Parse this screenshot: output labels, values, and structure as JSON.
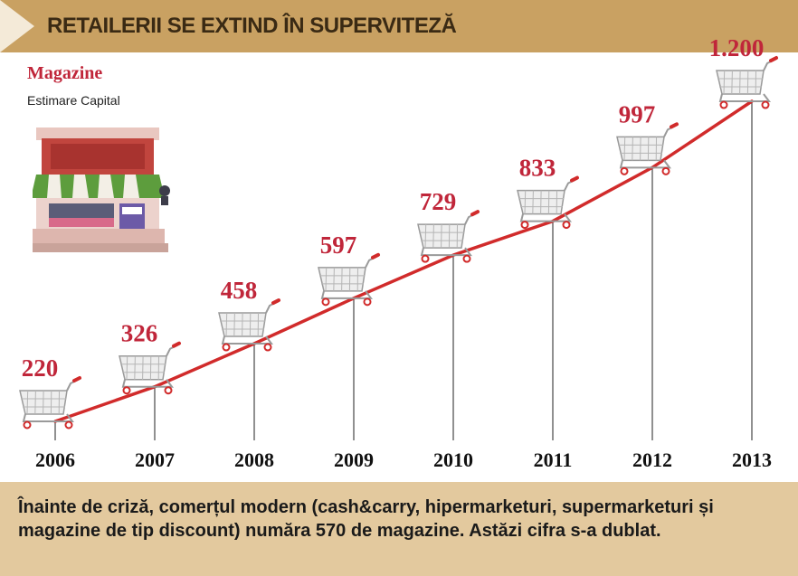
{
  "header": {
    "title": "RETAILERII SE EXTIND ÎN SUPERVITEZĂ"
  },
  "chart_data": {
    "type": "line",
    "title": "Magazine",
    "source": "Estimare Capital",
    "categories": [
      "2006",
      "2007",
      "2008",
      "2009",
      "2010",
      "2011",
      "2012",
      "2013"
    ],
    "values": [
      220,
      326,
      458,
      597,
      729,
      833,
      997,
      1200
    ],
    "value_labels": [
      "220",
      "326",
      "458",
      "597",
      "729",
      "833",
      "997",
      "1.200"
    ],
    "line_color": "#d12b2b",
    "label_color": "#c0263a",
    "grid": false
  },
  "footer": {
    "text": "Înainte de criză, comerțul modern (cash&carry, hipermarketuri, supermarketuri și magazine de tip discount) număra 570 de magazine. Astăzi cifra s-a dublat."
  },
  "colors": {
    "header_bg": "#c9a162",
    "footer_bg": "#e3c99e",
    "accent_red": "#c0263a"
  }
}
